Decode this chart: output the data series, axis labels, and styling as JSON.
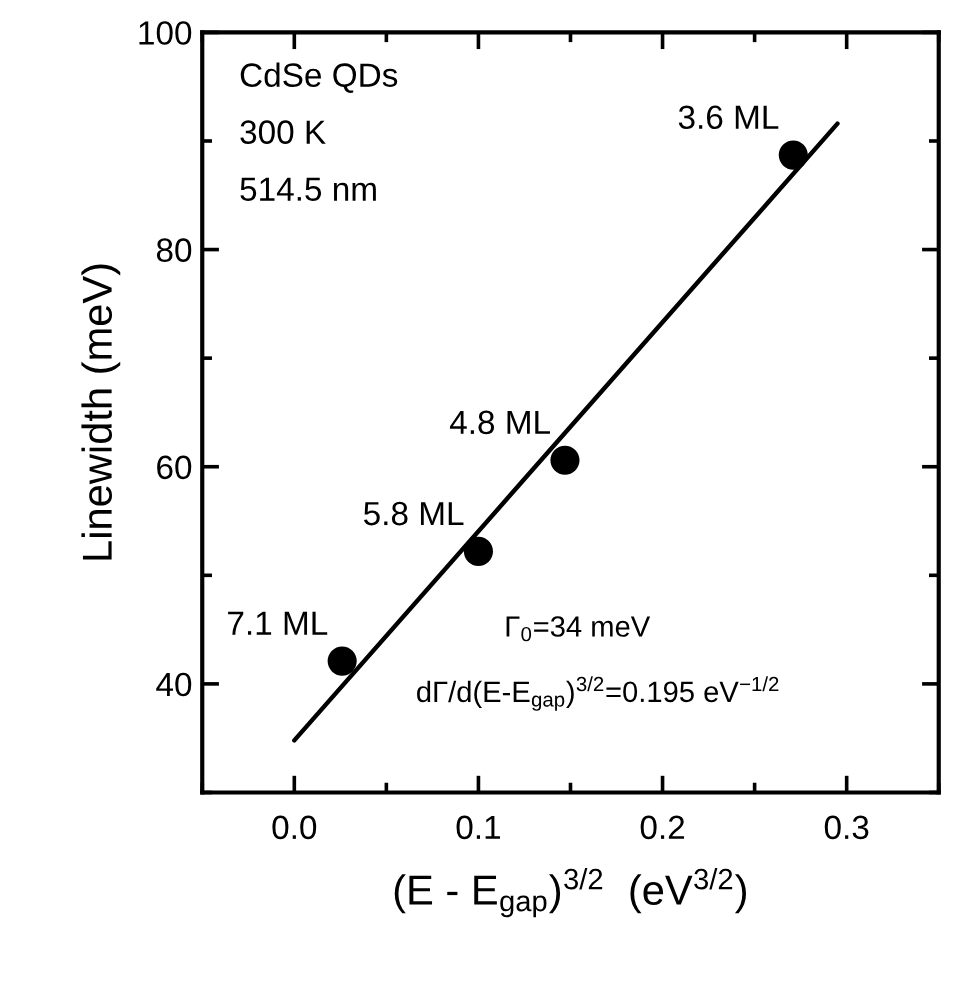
{
  "chart_data": {
    "type": "scatter",
    "xlabel": "(E - E$_{gap}$)$^{3/2}$  (eV$^{3/2}$)",
    "ylabel": "Linewidth (meV)",
    "xlim": [
      -0.05,
      0.35
    ],
    "xticks": [
      {
        "value": 0.0,
        "label": "0.0"
      },
      0.1,
      0.2,
      0.3
    ],
    "ylim": [
      30,
      100
    ],
    "yticks": [
      40,
      60,
      80,
      100
    ],
    "grid": false,
    "series": [
      {
        "marker": "circle",
        "color": "#000000",
        "x": [
          0.026,
          0.1,
          0.147,
          0.271
        ],
        "values": [
          42.1,
          52.2,
          60.6,
          88.7
        ]
      },
      {
        "type": "line",
        "color": "#000000",
        "x": [
          0.0,
          0.295
        ],
        "values": [
          34.8,
          91.6
        ],
        "line_style": "solid"
      }
    ],
    "annotations": [
      "CdSe QDs",
      "300 K",
      "514.5 nm",
      "Γ$_{0}$=34 meV",
      "dΓ/d(E-E$_{gap}$)$^{3/2}$=0.195 eV$^{−1/2}$",
      {
        "text": "7.1 ML",
        "x": 0.026,
        "y": 42.1
      },
      {
        "text": "5.8 ML",
        "x": 0.1,
        "y": 52.2
      },
      {
        "text": "4.8 ML",
        "x": 0.147,
        "y": 60.6
      },
      {
        "text": "3.6 ML",
        "x": 0.271,
        "y": 88.7
      }
    ]
  }
}
